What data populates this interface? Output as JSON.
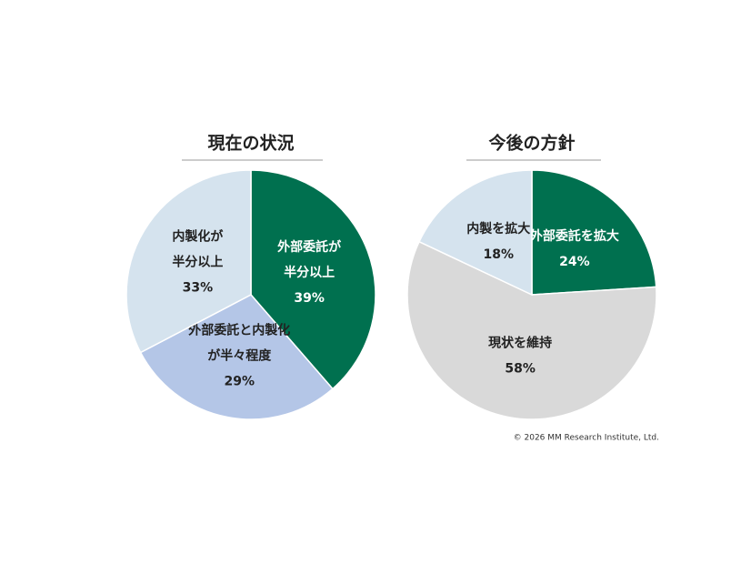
{
  "chart_data": [
    {
      "type": "pie",
      "title": "現在の状況",
      "categories": [
        [
          "外部委託が",
          "半分以上"
        ],
        [
          "外部委託と内製化",
          "が半々程度"
        ],
        [
          "内製化が",
          "半分以上"
        ]
      ],
      "values": [
        39,
        29,
        33
      ],
      "value_labels": [
        "39%",
        "29%",
        "33%"
      ],
      "colors": [
        "#00704f",
        "#b4c6e7",
        "#d5e3ee"
      ]
    },
    {
      "type": "pie",
      "title": "今後の方針",
      "categories": [
        [
          "外部委託を拡大"
        ],
        [
          "現状を維持"
        ],
        [
          "内製を拡大"
        ]
      ],
      "values": [
        24,
        58,
        18
      ],
      "value_labels": [
        "24%",
        "58%",
        "18%"
      ],
      "colors": [
        "#00704f",
        "#d9d9d9",
        "#d5e3ee"
      ],
      "footnote": "© 2026 MM Research Institute, Ltd."
    }
  ]
}
